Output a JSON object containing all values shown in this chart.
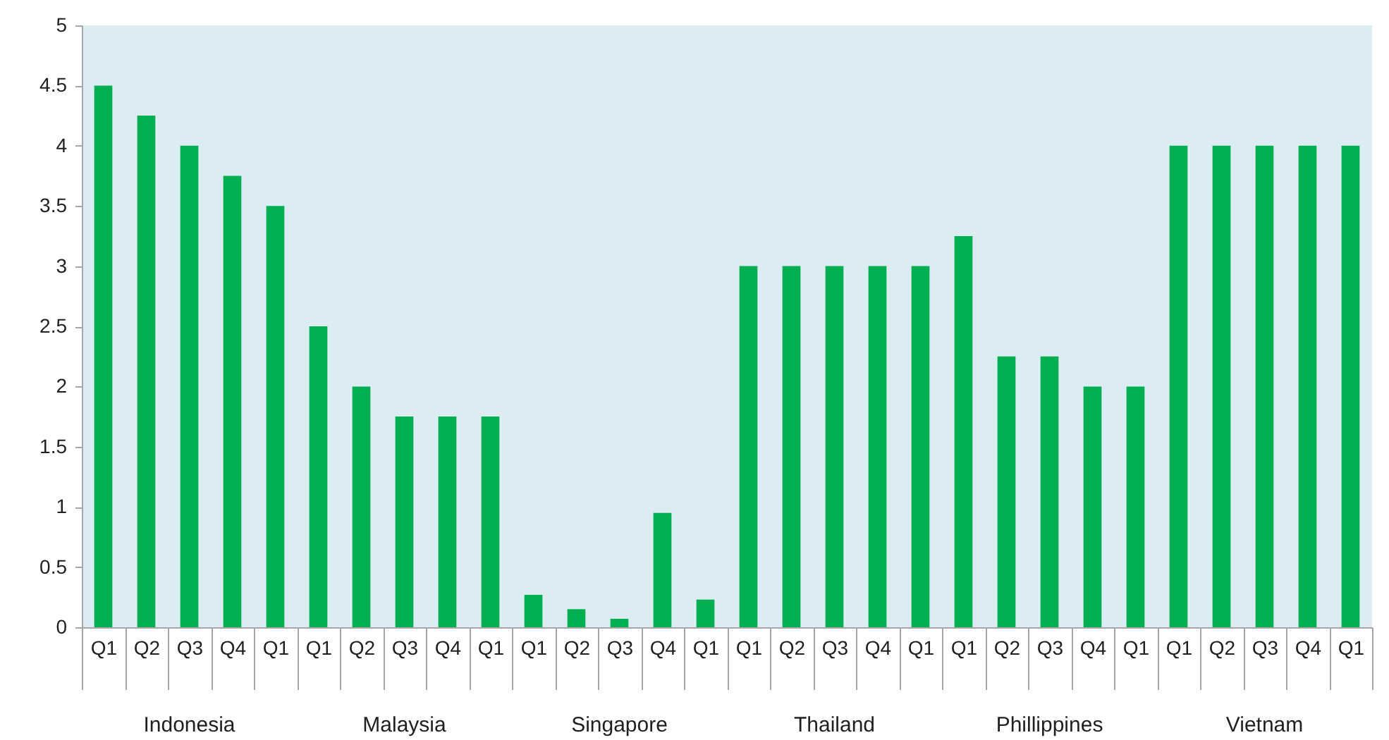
{
  "chart_data": {
    "type": "bar",
    "categories": [
      "Q1",
      "Q2",
      "Q3",
      "Q4",
      "Q1",
      "Q1",
      "Q2",
      "Q3",
      "Q4",
      "Q1",
      "Q1",
      "Q2",
      "Q3",
      "Q4",
      "Q1",
      "Q1",
      "Q2",
      "Q3",
      "Q4",
      "Q1",
      "Q1",
      "Q2",
      "Q3",
      "Q4",
      "Q1",
      "Q1",
      "Q2",
      "Q3",
      "Q4",
      "Q1"
    ],
    "values": [
      4.5,
      4.25,
      4,
      3.75,
      3.5,
      2.5,
      2,
      1.75,
      1.75,
      1.75,
      0.27,
      0.15,
      0.07,
      0.95,
      0.23,
      3,
      3,
      3,
      3,
      3,
      3.25,
      2.25,
      2.25,
      2,
      2,
      4,
      4,
      4,
      4,
      4
    ],
    "color": "#00b050",
    "annotations": [
      "Indonesia",
      "Malaysia",
      "Singapore",
      "Thailand",
      "Phillippines",
      "Vietnam"
    ],
    "ylim": [
      0,
      5
    ],
    "yticks": [
      0,
      0.5,
      1,
      1.5,
      2,
      2.5,
      3,
      3.5,
      4,
      4.5,
      5
    ],
    "grid": false
  }
}
